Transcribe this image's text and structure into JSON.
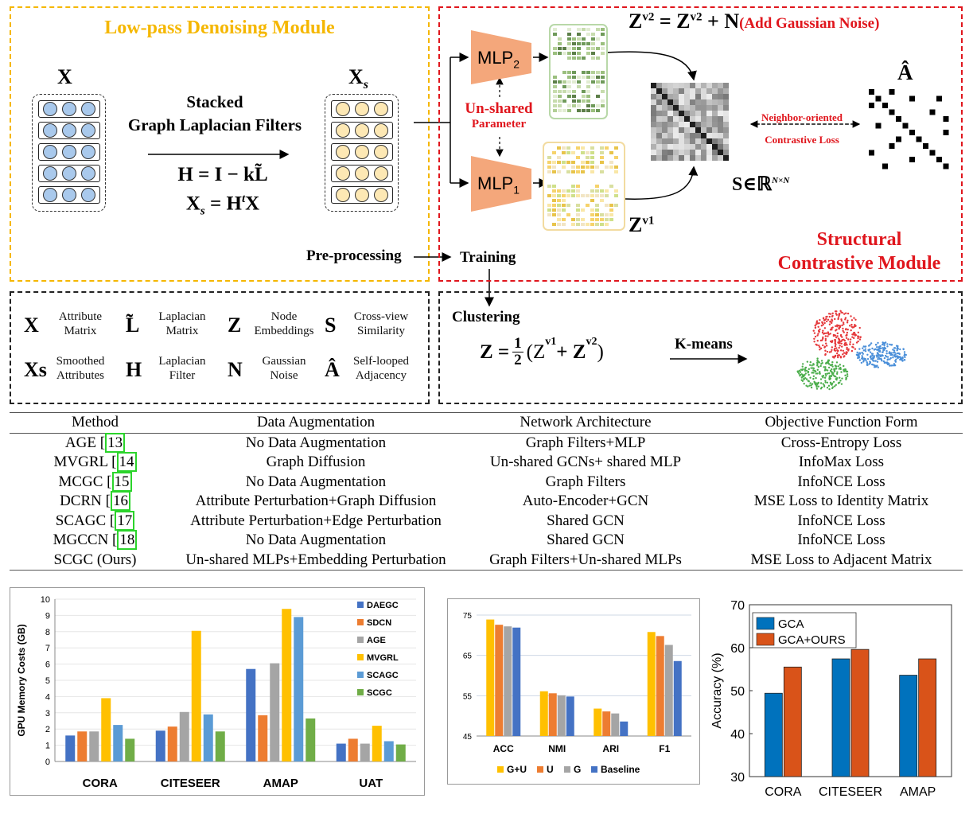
{
  "diagram": {
    "lowpass_title": "Low-pass Denoising Module",
    "x_label": "X",
    "xs_label": "X",
    "xs_sub": "s",
    "filter_title_1": "Stacked",
    "filter_title_2": "Graph Laplacian Filters",
    "eq_h": "H = I − kL̃",
    "eq_xs": "X",
    "eq_xs_rest": " = H",
    "eq_xs_sup": "t",
    "eq_xs_end": "X",
    "preprocessing": "Pre-processing",
    "training": "Training",
    "mlp2": "MLP",
    "mlp2_sub": "2",
    "mlp1": "MLP",
    "mlp1_sub": "1",
    "unshared_1": "Un-shared",
    "unshared_2": "Parameter",
    "zv2_eq_left": "Z",
    "zv2_eq_mid": " = Z",
    "zv2_eq_right": " + N",
    "zv2_sup": "v2",
    "add_noise": "(Add Gaussian Noise)",
    "zv1": "Z",
    "zv1_sup": "v1",
    "s_label": "S∈ℝ",
    "s_sup": "N×N",
    "a_hat": "Â",
    "neighbor_1": "Neighbor-oriented",
    "neighbor_2": "Contrastive Loss",
    "structural_1": "Structural",
    "structural_2": "Contrastive Module",
    "clustering": "Clustering",
    "z_eq": "Z = ",
    "z_eq_half_n": "1",
    "z_eq_half_d": "2",
    "z_eq_paren": "(Z",
    "z_eq_plus": " + Z",
    "z_eq_close": ")",
    "kmeans": "K-means"
  },
  "legend": [
    {
      "glyph": "X",
      "text1": "Attribute",
      "text2": "Matrix"
    },
    {
      "glyph": "L̃",
      "text1": "Laplacian",
      "text2": "Matrix"
    },
    {
      "glyph": "Z",
      "text1": "Node",
      "text2": "Embeddings"
    },
    {
      "glyph": "S",
      "text1": "Cross-view",
      "text2": "Similarity"
    },
    {
      "glyph": "Xs",
      "text1": "Smoothed",
      "text2": "Attributes"
    },
    {
      "glyph": "H",
      "text1": "Laplacian",
      "text2": "Filter"
    },
    {
      "glyph": "N",
      "text1": "Gaussian",
      "text2": "Noise"
    },
    {
      "glyph": "Â",
      "text1": "Self-looped",
      "text2": "Adjacency"
    }
  ],
  "table": {
    "headers": [
      "Method",
      "Data Augmentation",
      "Network Architecture",
      "Objective Function Form"
    ],
    "rows": [
      {
        "method": "AGE [",
        "cite": "13",
        "aug": "No Data Augmentation",
        "arch": "Graph Filters+MLP",
        "obj": "Cross-Entropy Loss"
      },
      {
        "method": "MVGRL [",
        "cite": "14",
        "aug": "Graph Diffusion",
        "arch": "Un-shared GCNs+ shared MLP",
        "obj": "InfoMax Loss"
      },
      {
        "method": "MCGC [",
        "cite": "15",
        "aug": "No Data Augmentation",
        "arch": "Graph Filters",
        "obj": "InfoNCE Loss"
      },
      {
        "method": "DCRN [",
        "cite": "16",
        "aug": "Attribute Perturbation+Graph Diffusion",
        "arch": "Auto-Encoder+GCN",
        "obj": "MSE Loss to Identity Matrix"
      },
      {
        "method": "SCAGC [",
        "cite": "17",
        "aug": "Attribute Perturbation+Edge Perturbation",
        "arch": "Shared GCN",
        "obj": "InfoNCE Loss"
      },
      {
        "method": "MGCCN [",
        "cite": "18",
        "aug": "No Data Augmentation",
        "arch": "Shared GCN",
        "obj": "InfoNCE Loss"
      },
      {
        "method": "SCGC (Ours)",
        "cite": "",
        "aug": "Un-shared MLPs+Embedding Perturbation",
        "arch": "Graph Filters+Un-shared MLPs",
        "obj": "MSE Loss to Adjacent Matrix"
      }
    ]
  },
  "chart_data": [
    {
      "type": "bar",
      "ylabel": "GPU Memory Costs (GB)",
      "ylim": [
        0,
        10
      ],
      "yticks": [
        "0",
        "1",
        "2",
        "3",
        "4",
        "5",
        "6",
        "7",
        "8",
        "9",
        "10"
      ],
      "categories": [
        "CORA",
        "CITESEER",
        "AMAP",
        "UAT"
      ],
      "legend_position": "top-right",
      "series": [
        {
          "name": "DAEGC",
          "color": "#4472c4",
          "values": [
            1.6,
            1.9,
            5.7,
            1.1
          ]
        },
        {
          "name": "SDCN",
          "color": "#ed7d31",
          "values": [
            1.85,
            2.15,
            2.85,
            1.4
          ]
        },
        {
          "name": "AGE",
          "color": "#a5a5a5",
          "values": [
            1.85,
            3.05,
            6.05,
            1.1
          ]
        },
        {
          "name": "MVGRL",
          "color": "#ffc000",
          "values": [
            3.9,
            8.05,
            9.4,
            2.2
          ]
        },
        {
          "name": "SCAGC",
          "color": "#5b9bd5",
          "values": [
            2.25,
            2.9,
            8.9,
            1.25
          ]
        },
        {
          "name": "SCGC",
          "color": "#70ad47",
          "values": [
            1.4,
            1.85,
            2.65,
            1.05
          ]
        }
      ]
    },
    {
      "type": "bar",
      "ylim": [
        45,
        75
      ],
      "yticks": [
        "45",
        "55",
        "65",
        "75"
      ],
      "categories": [
        "ACC",
        "NMI",
        "ARI",
        "F1"
      ],
      "legend_position": "bottom",
      "series": [
        {
          "name": "G+U",
          "color": "#ffc000",
          "values": [
            73.9,
            56.1,
            51.8,
            70.8
          ]
        },
        {
          "name": "U",
          "color": "#ed7d31",
          "values": [
            72.6,
            55.6,
            51.1,
            69.8
          ]
        },
        {
          "name": "G",
          "color": "#a5a5a5",
          "values": [
            72.2,
            55.1,
            50.6,
            67.6
          ]
        },
        {
          "name": "Baseline",
          "color": "#4472c4",
          "values": [
            71.9,
            54.8,
            48.6,
            63.6
          ]
        }
      ]
    },
    {
      "type": "bar",
      "ylabel": "Accuracy (%)",
      "ylim": [
        30,
        70
      ],
      "yticks": [
        "30",
        "40",
        "50",
        "60",
        "70"
      ],
      "categories": [
        "CORA",
        "CITESEER",
        "AMAP"
      ],
      "legend_position": "top-left",
      "series": [
        {
          "name": "GCA",
          "color": "#0072bd",
          "values": [
            49.4,
            57.4,
            53.6
          ]
        },
        {
          "name": "GCA+OURS",
          "color": "#d95319",
          "values": [
            55.5,
            59.6,
            57.4
          ]
        }
      ]
    }
  ]
}
